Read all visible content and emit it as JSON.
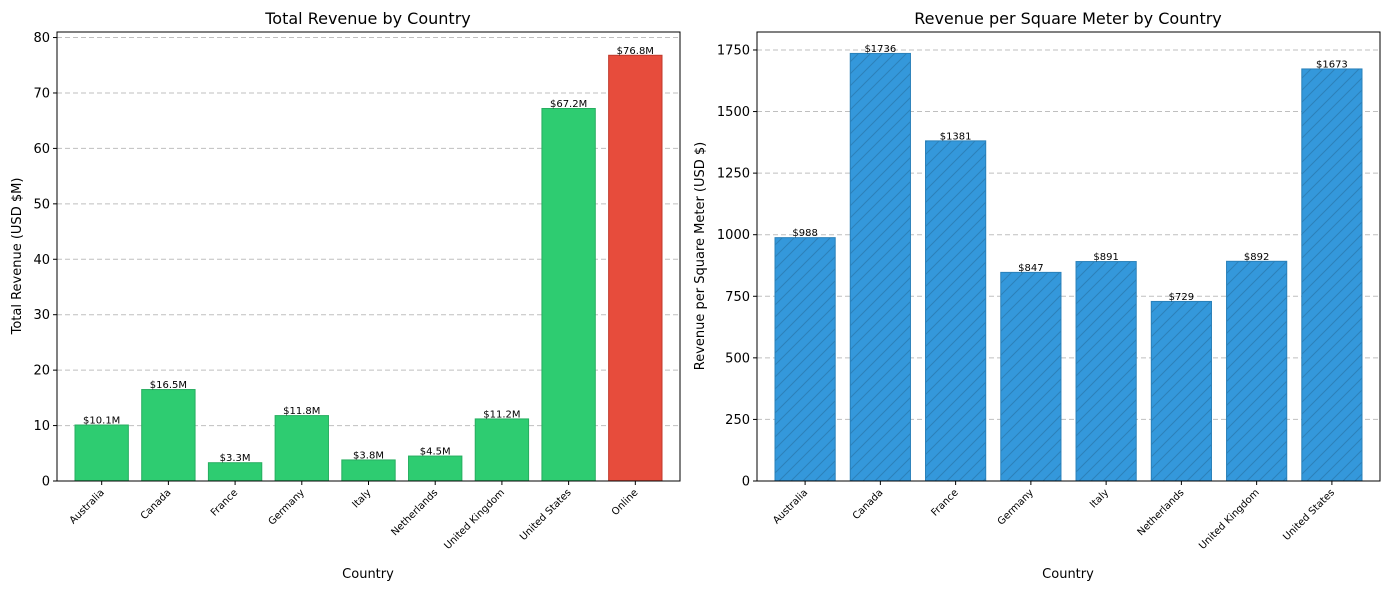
{
  "chart_data": [
    {
      "type": "bar",
      "title": "Total Revenue by Country",
      "xlabel": "Country",
      "ylabel": "Total Revenue (USD $M)",
      "ylim": [
        0,
        81
      ],
      "yticks": [
        0,
        10,
        20,
        30,
        40,
        50,
        60,
        70,
        80
      ],
      "grid": "y-dashed",
      "categories": [
        "Australia",
        "Canada",
        "France",
        "Germany",
        "Italy",
        "Netherlands",
        "United Kingdom",
        "United States",
        "Online"
      ],
      "values": [
        10.1,
        16.5,
        3.3,
        11.8,
        3.8,
        4.5,
        11.2,
        67.2,
        76.8
      ],
      "data_labels": [
        "$10.1M",
        "$16.5M",
        "$3.3M",
        "$11.8M",
        "$3.8M",
        "$4.5M",
        "$11.2M",
        "$67.2M",
        "$76.8M"
      ],
      "colors": [
        "#2ecc71",
        "#2ecc71",
        "#2ecc71",
        "#2ecc71",
        "#2ecc71",
        "#2ecc71",
        "#2ecc71",
        "#2ecc71",
        "#e74c3c"
      ],
      "edge_colors": [
        "#27ae60",
        "#27ae60",
        "#27ae60",
        "#27ae60",
        "#27ae60",
        "#27ae60",
        "#27ae60",
        "#27ae60",
        "#c0392b"
      ],
      "hatch": false
    },
    {
      "type": "bar",
      "title": "Revenue per Square Meter by Country",
      "xlabel": "Country",
      "ylabel": "Revenue per Square Meter (USD $)",
      "ylim": [
        0,
        1823
      ],
      "yticks": [
        0,
        250,
        500,
        750,
        1000,
        1250,
        1500,
        1750
      ],
      "grid": "y-dashed",
      "categories": [
        "Australia",
        "Canada",
        "France",
        "Germany",
        "Italy",
        "Netherlands",
        "United Kingdom",
        "United States"
      ],
      "values": [
        988,
        1736,
        1381,
        847,
        891,
        729,
        892,
        1673
      ],
      "data_labels": [
        "$988",
        "$1736",
        "$1381",
        "$847",
        "$891",
        "$729",
        "$892",
        "$1673"
      ],
      "colors": [
        "#3498db",
        "#3498db",
        "#3498db",
        "#3498db",
        "#3498db",
        "#3498db",
        "#3498db",
        "#3498db"
      ],
      "edge_colors": [
        "#2980b9",
        "#2980b9",
        "#2980b9",
        "#2980b9",
        "#2980b9",
        "#2980b9",
        "#2980b9",
        "#2980b9"
      ],
      "hatch": true
    }
  ]
}
